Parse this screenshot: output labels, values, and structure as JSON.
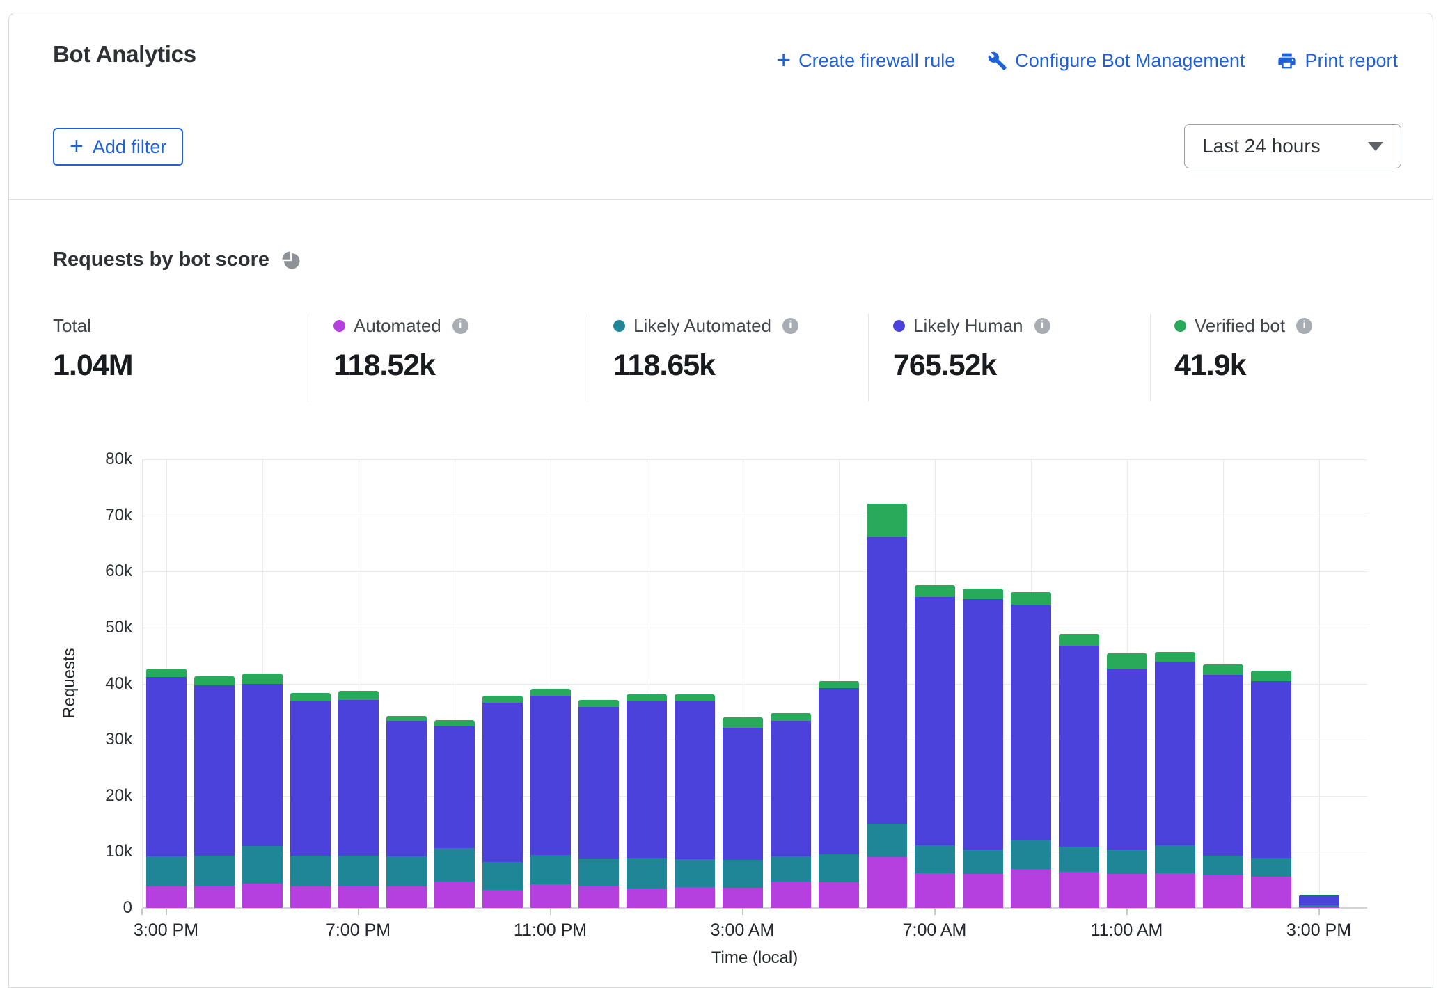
{
  "header": {
    "title": "Bot Analytics",
    "actions": [
      {
        "label": "Create firewall rule",
        "icon": "plus-icon"
      },
      {
        "label": "Configure Bot Management",
        "icon": "wrench-icon"
      },
      {
        "label": "Print report",
        "icon": "printer-icon"
      }
    ],
    "add_filter": {
      "label": "Add filter",
      "icon": "plus-icon"
    },
    "time_range": {
      "value": "Last 24 hours"
    }
  },
  "section": {
    "title": "Requests by bot score",
    "icon": "pie-chart-icon"
  },
  "stats": [
    {
      "label": "Total",
      "value": "1.04M",
      "color": null,
      "has_info": false
    },
    {
      "label": "Automated",
      "value": "118.52k",
      "color": "#B540DF",
      "has_info": true
    },
    {
      "label": "Likely Automated",
      "value": "118.65k",
      "color": "#1E8697",
      "has_info": true
    },
    {
      "label": "Likely Human",
      "value": "765.52k",
      "color": "#4A42DB",
      "has_info": true
    },
    {
      "label": "Verified bot",
      "value": "41.9k",
      "color": "#27AA5A",
      "has_info": true
    }
  ],
  "chart_data": {
    "type": "bar",
    "stacked": true,
    "title": "Requests by bot score",
    "xlabel": "Time (local)",
    "ylabel": "Requests",
    "ylim": [
      0,
      80000
    ],
    "ytick_labels": [
      "0",
      "10k",
      "20k",
      "30k",
      "40k",
      "50k",
      "60k",
      "70k",
      "80k"
    ],
    "x_bucket_count": 25,
    "x_bucket_unit": "hour",
    "xtick_positions": [
      0,
      4,
      8,
      12,
      16,
      20,
      24
    ],
    "xtick_labels": [
      "3:00 PM",
      "7:00 PM",
      "11:00 PM",
      "3:00 AM",
      "7:00 AM",
      "11:00 AM",
      "3:00 PM"
    ],
    "grid": true,
    "stack_order": "bottom_to_top",
    "series": [
      {
        "name": "Automated",
        "color": "#B540DF",
        "values": [
          3900,
          4000,
          4300,
          3800,
          4000,
          3800,
          4700,
          3200,
          4200,
          4000,
          3500,
          3700,
          3600,
          4700,
          4600,
          9100,
          6200,
          6100,
          6900,
          6400,
          6100,
          6200,
          6000,
          5600,
          300
        ]
      },
      {
        "name": "Likely Automated",
        "color": "#1E8697",
        "values": [
          5300,
          5300,
          6700,
          5500,
          5300,
          5300,
          5900,
          4900,
          5200,
          4800,
          5400,
          4900,
          4900,
          4500,
          4900,
          5900,
          5000,
          4400,
          5100,
          4500,
          4300,
          4900,
          3300,
          3300,
          300
        ]
      },
      {
        "name": "Likely Human",
        "color": "#4A42DB",
        "values": [
          32000,
          30400,
          28900,
          27500,
          27800,
          24200,
          21700,
          28400,
          28400,
          27100,
          27900,
          28100,
          23600,
          24200,
          29700,
          51100,
          44300,
          44700,
          42100,
          35800,
          32100,
          32800,
          32300,
          31500,
          1700
        ]
      },
      {
        "name": "Verified bot",
        "color": "#27AA5A",
        "values": [
          1500,
          1600,
          1900,
          1500,
          1600,
          900,
          1100,
          1300,
          1300,
          1200,
          1200,
          1300,
          1800,
          1400,
          1200,
          6000,
          2100,
          1900,
          2200,
          2100,
          2800,
          1700,
          1800,
          1800,
          100
        ]
      }
    ]
  }
}
